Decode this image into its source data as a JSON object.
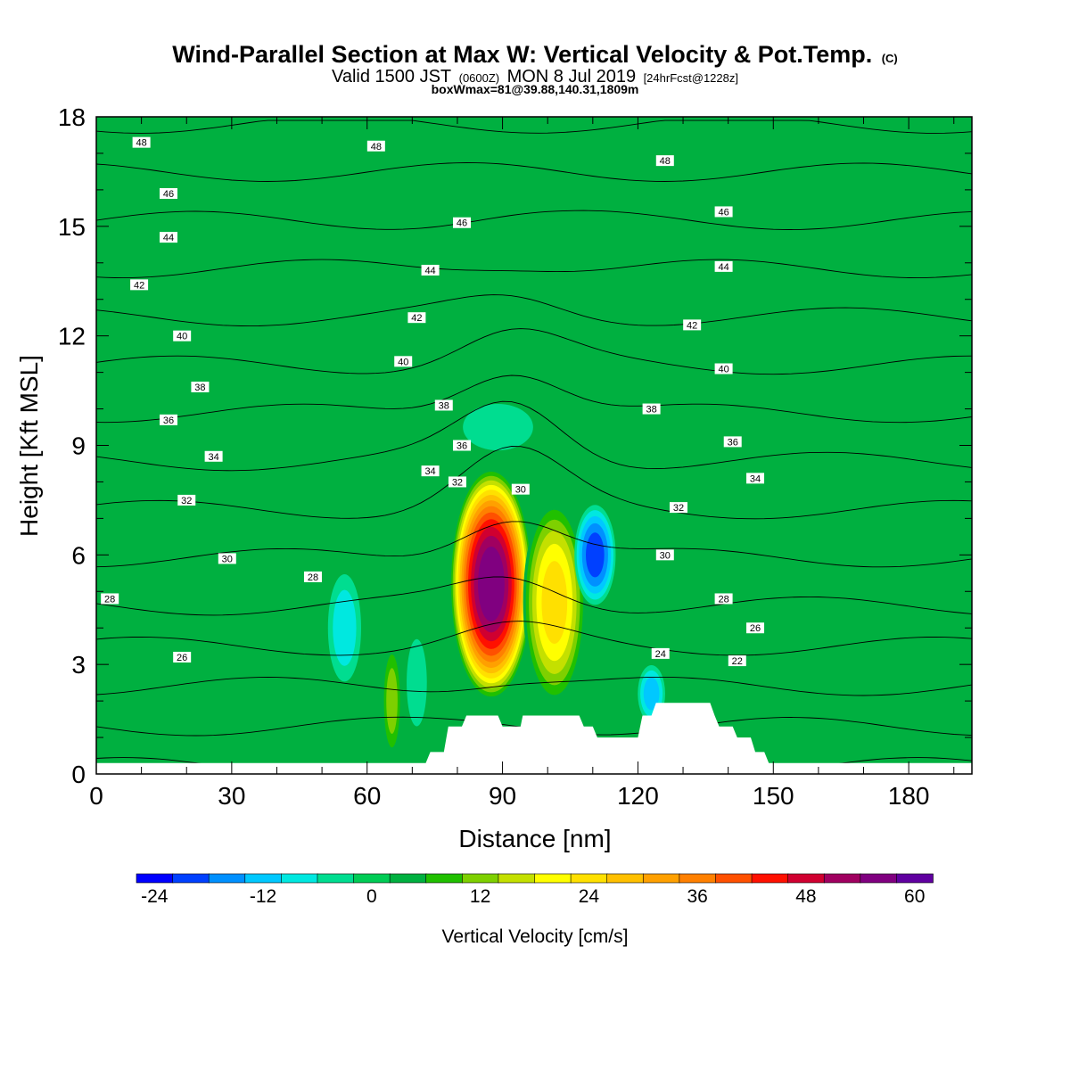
{
  "title": {
    "main": "Wind-Parallel Section at Max W: Vertical Velocity & Pot.Temp.",
    "copyright": "(C)",
    "valid_prefix": "Valid 1500 JST",
    "valid_utc": "(0600Z)",
    "valid_date": "MON 8 Jul 2019",
    "forecast": "[24hrFcst@1228z]",
    "boxwmax": "boxWmax=81@39.88,140.31,1809m"
  },
  "chart_data": {
    "type": "heatmap",
    "xlabel": "Distance [nm]",
    "ylabel": "Height [Kft MSL]",
    "xlim": [
      0,
      194
    ],
    "ylim": [
      0,
      18
    ],
    "xticks": [
      0,
      30,
      60,
      90,
      120,
      150,
      180
    ],
    "yticks": [
      0,
      3,
      6,
      9,
      12,
      15,
      18
    ],
    "background_value": 2,
    "w_field_features": [
      {
        "x": 87.5,
        "y": 5.2,
        "rx": 9.5,
        "ry": 3.3,
        "peak": 60
      },
      {
        "x": 101.5,
        "y": 4.7,
        "rx": 7.5,
        "ry": 3.0,
        "peak": 26
      },
      {
        "x": 65.5,
        "y": 2.0,
        "rx": 2.5,
        "ry": 1.8,
        "peak": 14
      },
      {
        "x": 110.5,
        "y": 6.0,
        "rx": 5.0,
        "ry": 1.5,
        "peak": -22
      },
      {
        "x": 123.0,
        "y": 2.2,
        "rx": 3.5,
        "ry": 0.9,
        "peak": -14
      },
      {
        "x": 55.0,
        "y": 4.0,
        "rx": 4.5,
        "ry": 1.8,
        "peak": -10
      },
      {
        "x": 71.0,
        "y": 2.5,
        "rx": 3.0,
        "ry": 1.6,
        "peak": -7
      },
      {
        "x": 89.0,
        "y": 9.5,
        "rx": 11.0,
        "ry": 0.9,
        "peak": -6
      }
    ],
    "terrain_kft": [
      [
        0,
        0.3
      ],
      [
        73,
        0.3
      ],
      [
        74,
        0.6
      ],
      [
        77,
        0.6
      ],
      [
        78,
        1.3
      ],
      [
        81,
        1.3
      ],
      [
        82,
        1.6
      ],
      [
        89,
        1.6
      ],
      [
        90,
        1.3
      ],
      [
        94,
        1.3
      ],
      [
        94.5,
        1.6
      ],
      [
        107,
        1.6
      ],
      [
        108,
        1.3
      ],
      [
        110,
        1.3
      ],
      [
        111,
        1.0
      ],
      [
        120,
        1.0
      ],
      [
        121,
        1.6
      ],
      [
        123,
        1.6
      ],
      [
        124,
        1.95
      ],
      [
        136,
        1.95
      ],
      [
        137,
        1.6
      ],
      [
        138,
        1.3
      ],
      [
        141,
        1.3
      ],
      [
        142,
        1.0
      ],
      [
        145,
        1.0
      ],
      [
        146,
        0.6
      ],
      [
        148,
        0.6
      ],
      [
        149,
        0.3
      ],
      [
        194,
        0.3
      ]
    ],
    "theta_contours": [
      20,
      22,
      24,
      26,
      28,
      30,
      32,
      34,
      36,
      38,
      40,
      42,
      44,
      46,
      48
    ],
    "contour_labels": [
      {
        "text": "48",
        "x": 10,
        "y": 17.3
      },
      {
        "text": "48",
        "x": 62,
        "y": 17.2
      },
      {
        "text": "48",
        "x": 126,
        "y": 16.8
      },
      {
        "text": "46",
        "x": 16,
        "y": 15.9
      },
      {
        "text": "46",
        "x": 81,
        "y": 15.1
      },
      {
        "text": "46",
        "x": 139,
        "y": 15.4
      },
      {
        "text": "44",
        "x": 16,
        "y": 14.7
      },
      {
        "text": "44",
        "x": 74,
        "y": 13.8
      },
      {
        "text": "44",
        "x": 139,
        "y": 13.9
      },
      {
        "text": "42",
        "x": 9.5,
        "y": 13.4
      },
      {
        "text": "42",
        "x": 71,
        "y": 12.5
      },
      {
        "text": "42",
        "x": 132,
        "y": 12.3
      },
      {
        "text": "40",
        "x": 19,
        "y": 12.0
      },
      {
        "text": "40",
        "x": 68,
        "y": 11.3
      },
      {
        "text": "40",
        "x": 139,
        "y": 11.1
      },
      {
        "text": "38",
        "x": 23,
        "y": 10.6
      },
      {
        "text": "38",
        "x": 77,
        "y": 10.1
      },
      {
        "text": "38",
        "x": 123,
        "y": 10.0
      },
      {
        "text": "36",
        "x": 16,
        "y": 9.7
      },
      {
        "text": "36",
        "x": 81,
        "y": 9.0
      },
      {
        "text": "36",
        "x": 141,
        "y": 9.1
      },
      {
        "text": "34",
        "x": 26,
        "y": 8.7
      },
      {
        "text": "34",
        "x": 74,
        "y": 8.3
      },
      {
        "text": "34",
        "x": 146,
        "y": 8.1
      },
      {
        "text": "32",
        "x": 80,
        "y": 8.0
      },
      {
        "text": "32",
        "x": 20,
        "y": 7.5
      },
      {
        "text": "32",
        "x": 129,
        "y": 7.3
      },
      {
        "text": "30",
        "x": 94,
        "y": 7.8
      },
      {
        "text": "30",
        "x": 29,
        "y": 5.9
      },
      {
        "text": "30",
        "x": 126,
        "y": 6.0
      },
      {
        "text": "28",
        "x": 48,
        "y": 5.4
      },
      {
        "text": "28",
        "x": 3,
        "y": 4.8
      },
      {
        "text": "28",
        "x": 139,
        "y": 4.8
      },
      {
        "text": "26",
        "x": 146,
        "y": 4.0
      },
      {
        "text": "26",
        "x": 19,
        "y": 3.2
      },
      {
        "text": "24",
        "x": 125,
        "y": 3.3
      },
      {
        "text": "22",
        "x": 142,
        "y": 3.1
      }
    ]
  },
  "colorbar": {
    "label": "Vertical Velocity [cm/s]",
    "tick_values": [
      -24,
      -12,
      0,
      12,
      24,
      36,
      48,
      60
    ],
    "tick_labels": [
      "-24",
      "-12",
      "0",
      "12",
      "24",
      "36",
      "48",
      "60"
    ],
    "min": -26,
    "step": 4,
    "colors": [
      "#0000ff",
      "#0040ff",
      "#0090ff",
      "#00c8ff",
      "#00e8e0",
      "#00dd90",
      "#00cc55",
      "#00b040",
      "#20c000",
      "#7ed000",
      "#c4e000",
      "#ffff00",
      "#ffe000",
      "#ffc000",
      "#ffa000",
      "#ff8000",
      "#ff5000",
      "#ff1000",
      "#d00030",
      "#a00060",
      "#800080",
      "#6000a0"
    ]
  }
}
